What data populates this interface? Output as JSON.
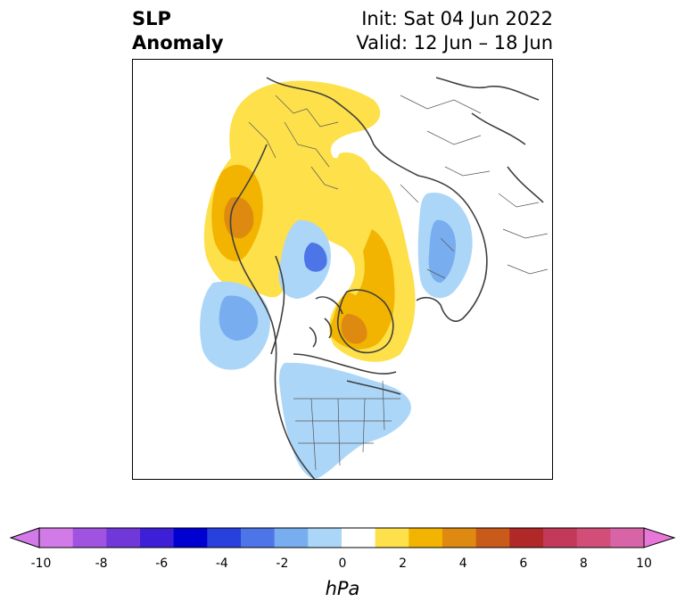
{
  "title": {
    "left": "SLP\nAnomaly",
    "init": "Init: Sat 04 Jun 2022",
    "valid": "Valid: 12 Jun – 18 Jun"
  },
  "colorbar": {
    "unit": "hPa",
    "ticks": [
      "-10",
      "-8",
      "-6",
      "-4",
      "-2",
      "0",
      "2",
      "4",
      "6",
      "8",
      "10"
    ],
    "bins": [
      "#d27be8",
      "#a052e0",
      "#7038d8",
      "#3c1fd6",
      "#0000d0",
      "#2840dc",
      "#4e75e8",
      "#78aef0",
      "#acd6f8",
      "#ffffff",
      "#fde04a",
      "#f2b400",
      "#de8a10",
      "#c85a1a",
      "#b02828",
      "#c23a58",
      "#d04e78",
      "#d864a8"
    ],
    "extend_low_color": "#d27be8",
    "extend_high_color": "#e878d8"
  },
  "map": {
    "projection": "north-polar-stereographic",
    "anomaly_colors": {
      "pos1": "#fde04a",
      "pos2": "#f2b400",
      "pos3": "#de8a10",
      "neg1": "#acd6f8",
      "neg2": "#78aef0",
      "neg3": "#4e75e8"
    },
    "coastline_color": "#404040",
    "border_color": "#555555"
  }
}
